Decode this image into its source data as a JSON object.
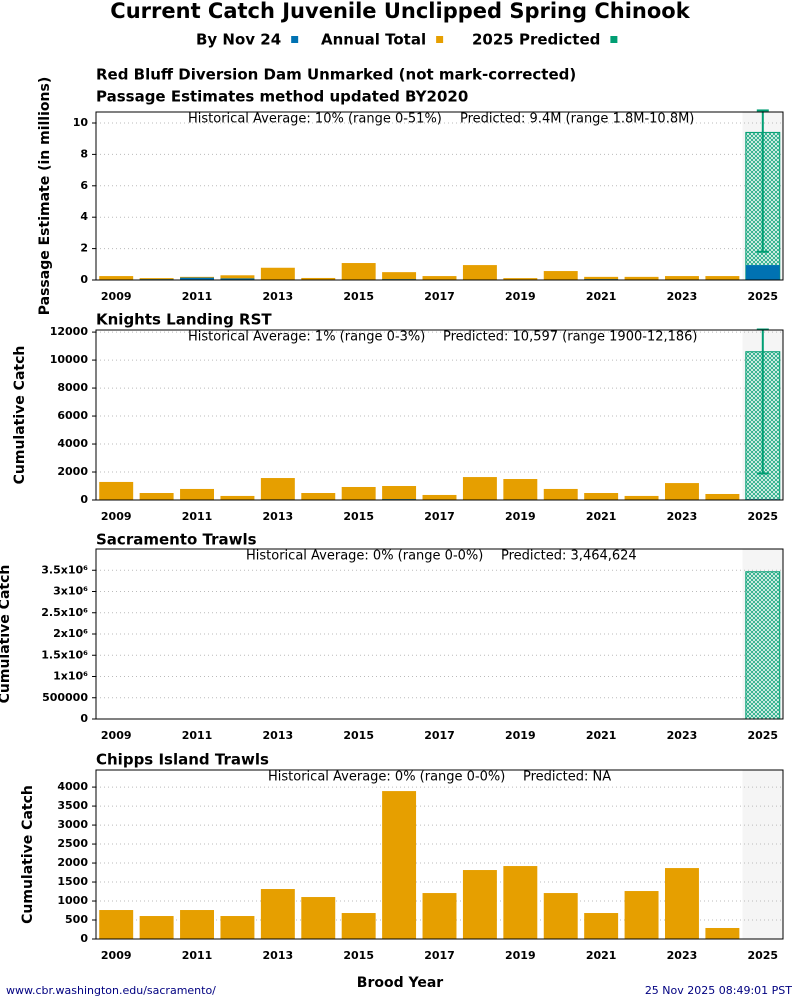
{
  "title": "Current Catch Juvenile Unclipped Spring Chinook",
  "legend": [
    {
      "name": "By Nov 24",
      "color": "#0072b2"
    },
    {
      "name": "Annual Total",
      "color": "#e69f00"
    },
    {
      "name": "2025 Predicted",
      "color": "#009e73"
    }
  ],
  "x_label": "Brood Year",
  "footer_url": "www.cbr.washington.edu/sacramento/",
  "timestamp": "25 Nov 2025 08:49:01 PST",
  "chart_data": [
    {
      "type": "bar",
      "title": "Red Bluff Diversion Dam Unmarked (not mark-corrected)",
      "subtitle": "Passage Estimates method updated BY2020",
      "y_label": "Passage Estimate (in millions)",
      "annotations": [
        "Historical Average: 10% (range 0-51%)",
        "Predicted: 9.4M (range 1.8M-10.8M)"
      ],
      "categories": [
        "2009",
        null,
        "2011",
        null,
        "2013",
        null,
        "2015",
        null,
        "2017",
        null,
        "2019",
        null,
        "2021",
        null,
        "2023",
        null,
        "2025"
      ],
      "ylim": [
        0,
        10.7
      ],
      "yticks": [
        0,
        2,
        4,
        6,
        8,
        10
      ],
      "grid": true,
      "series": [
        {
          "color": "#e69f00",
          "values": [
            0.25,
            0.12,
            0.2,
            0.3,
            0.78,
            0.13,
            1.08,
            0.5,
            0.25,
            0.95,
            0.12,
            0.57,
            0.2,
            0.2,
            0.25,
            0.25,
            null
          ]
        },
        {
          "color": "#009e73",
          "hatch": true,
          "values": [
            null,
            null,
            null,
            null,
            null,
            null,
            null,
            null,
            null,
            null,
            null,
            null,
            null,
            null,
            null,
            null,
            9.4
          ],
          "lower": [
            null,
            null,
            null,
            null,
            null,
            null,
            null,
            null,
            null,
            null,
            null,
            null,
            null,
            null,
            null,
            null,
            1.8
          ],
          "upper": [
            null,
            null,
            null,
            null,
            null,
            null,
            null,
            null,
            null,
            null,
            null,
            null,
            null,
            null,
            null,
            null,
            10.8
          ]
        },
        {
          "color": "#0072b2",
          "values": [
            0.02,
            0.05,
            0.15,
            0.1,
            0.02,
            0.02,
            0.03,
            0.05,
            0.02,
            0.03,
            0.02,
            0.03,
            0.05,
            0.02,
            0.02,
            0.02,
            0.95
          ]
        }
      ]
    },
    {
      "type": "bar",
      "title": "Knights Landing RST",
      "y_label": "Cumulative Catch",
      "annotations": [
        "Historical Average: 1% (range 0-3%)",
        "Predicted: 10,597 (range 1900-12,186)"
      ],
      "categories": [
        "2009",
        null,
        "2011",
        null,
        "2013",
        null,
        "2015",
        null,
        "2017",
        null,
        "2019",
        null,
        "2021",
        null,
        "2023",
        null,
        "2025"
      ],
      "ylim": [
        0,
        12150
      ],
      "yticks": [
        0,
        2000,
        4000,
        6000,
        8000,
        10000,
        12000
      ],
      "grid": true,
      "series": [
        {
          "color": "#e69f00",
          "values": [
            1290,
            500,
            790,
            290,
            1570,
            500,
            930,
            1000,
            360,
            1640,
            1500,
            790,
            500,
            290,
            1210,
            430,
            null
          ]
        },
        {
          "color": "#009e73",
          "hatch": true,
          "values": [
            null,
            null,
            null,
            null,
            null,
            null,
            null,
            null,
            null,
            null,
            null,
            null,
            null,
            null,
            null,
            null,
            10597
          ],
          "lower": [
            null,
            null,
            null,
            null,
            null,
            null,
            null,
            null,
            null,
            null,
            null,
            null,
            null,
            null,
            null,
            null,
            1900
          ],
          "upper": [
            null,
            null,
            null,
            null,
            null,
            null,
            null,
            null,
            null,
            null,
            null,
            null,
            null,
            null,
            null,
            null,
            12186
          ]
        },
        {
          "color": "#0072b2",
          "values": [
            30,
            20,
            30,
            10,
            40,
            20,
            30,
            60,
            20,
            30,
            40,
            30,
            20,
            10,
            30,
            20,
            50
          ]
        }
      ]
    },
    {
      "type": "bar",
      "title": "Sacramento Trawls",
      "y_label": "Cumulative Catch",
      "annotations": [
        "Historical Average: 0% (range 0-0%)",
        "Predicted: 3,464,624"
      ],
      "categories": [
        "2009",
        null,
        "2011",
        null,
        "2013",
        null,
        "2015",
        null,
        "2017",
        null,
        "2019",
        null,
        "2021",
        null,
        "2023",
        null,
        "2025"
      ],
      "ylim": [
        0,
        4000000
      ],
      "yticks": [
        0,
        500000,
        {
          "value": 1000000,
          "label": "1x10⁶"
        },
        {
          "value": 1500000,
          "label": "1.5x10⁶"
        },
        {
          "value": 2000000,
          "label": "2x10⁶"
        },
        {
          "value": 2500000,
          "label": "2.5x10⁶"
        },
        {
          "value": 3000000,
          "label": "3x10⁶"
        },
        {
          "value": 3500000,
          "label": "3.5x10⁶"
        }
      ],
      "grid": true,
      "series": [
        {
          "color": "#009e73",
          "hatch": true,
          "values": [
            null,
            null,
            null,
            null,
            null,
            null,
            null,
            null,
            null,
            null,
            null,
            null,
            null,
            null,
            null,
            null,
            3464624
          ]
        }
      ]
    },
    {
      "type": "bar",
      "title": "Chipps Island Trawls",
      "y_label": "Cumulative Catch",
      "annotations": [
        "Historical Average: 0% (range 0-0%)",
        "Predicted: NA"
      ],
      "categories": [
        "2009",
        null,
        "2011",
        null,
        "2013",
        null,
        "2015",
        null,
        "2017",
        null,
        "2019",
        null,
        "2021",
        null,
        "2023",
        null,
        "2025"
      ],
      "ylim": [
        0,
        4450
      ],
      "yticks": [
        0,
        500,
        1000,
        1500,
        2000,
        2500,
        3000,
        3500,
        4000
      ],
      "grid": true,
      "series": [
        {
          "color": "#e69f00",
          "values": [
            763,
            605,
            763,
            605,
            1316,
            1105,
            684,
            3895,
            1210,
            1816,
            1921,
            1210,
            684,
            1263,
            1868,
            290,
            null
          ]
        }
      ]
    }
  ]
}
